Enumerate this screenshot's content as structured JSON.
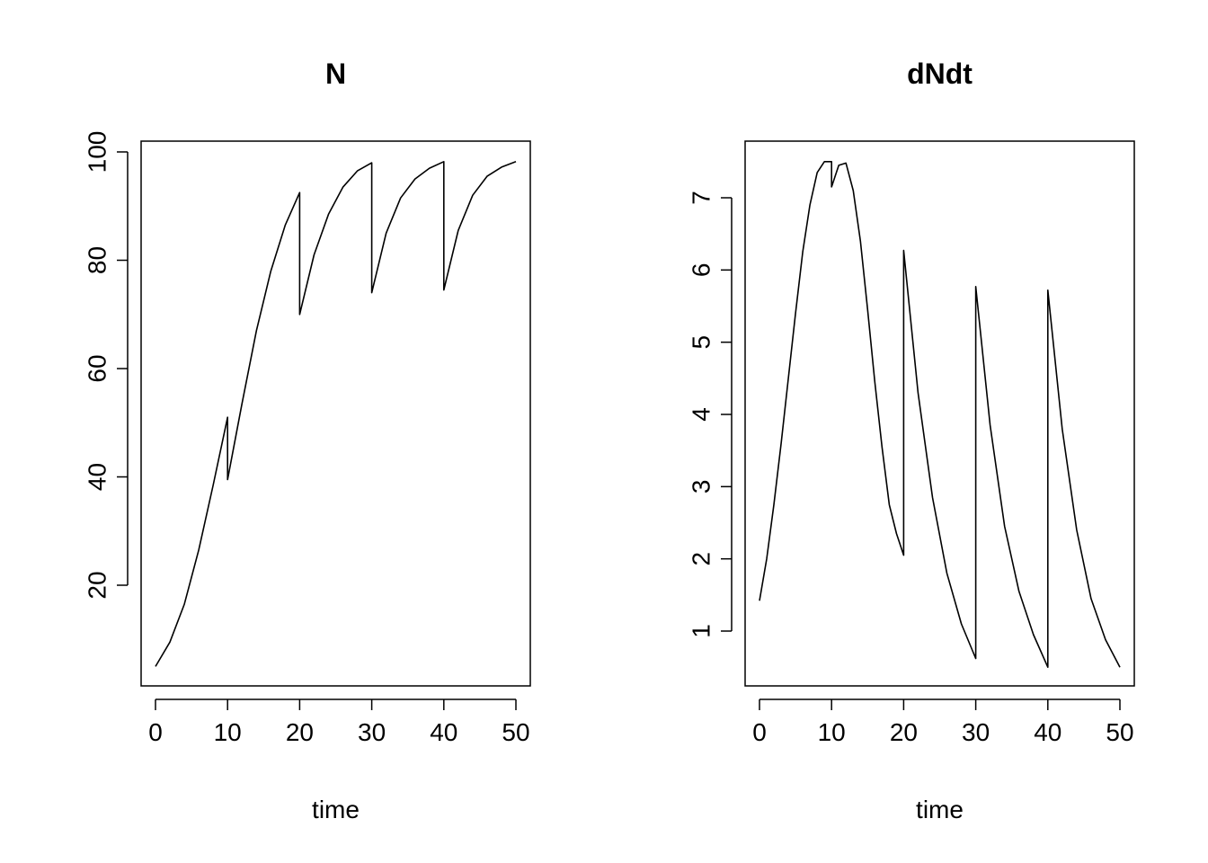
{
  "chart_data": [
    {
      "type": "line",
      "title": "N",
      "xlabel": "time",
      "ylabel": "",
      "xlim": [
        0,
        50
      ],
      "ylim": [
        5,
        100
      ],
      "xticks": [
        0,
        10,
        20,
        30,
        40,
        50
      ],
      "yticks": [
        20,
        40,
        60,
        80,
        100
      ],
      "grid": false,
      "series": [
        {
          "x": [
            0,
            2,
            4,
            6,
            8,
            10,
            10,
            12,
            14,
            16,
            18,
            20,
            20,
            22,
            24,
            26,
            28,
            30,
            30,
            32,
            34,
            36,
            38,
            40,
            40,
            42,
            44,
            46,
            48,
            50
          ],
          "values": [
            5,
            9.5,
            16.5,
            26.5,
            38.5,
            51,
            39.5,
            53.5,
            67,
            78,
            86.5,
            92.5,
            70,
            81,
            88.5,
            93.5,
            96.5,
            98,
            74,
            85,
            91.5,
            95,
            97,
            98.2,
            74.5,
            85.5,
            92,
            95.5,
            97.2,
            98.2
          ]
        }
      ]
    },
    {
      "type": "line",
      "title": "dNdt",
      "xlabel": "time",
      "ylabel": "",
      "xlim": [
        0,
        50
      ],
      "ylim": [
        0.5,
        7.5
      ],
      "xticks": [
        0,
        10,
        20,
        30,
        40,
        50
      ],
      "yticks": [
        1,
        2,
        3,
        4,
        5,
        6,
        7
      ],
      "grid": false,
      "series": [
        {
          "x": [
            0,
            1,
            2,
            3,
            4,
            5,
            6,
            7,
            8,
            9,
            10,
            10,
            11,
            12,
            13,
            14,
            15,
            16,
            17,
            18,
            19,
            20,
            20,
            22,
            24,
            26,
            28,
            30,
            30,
            32,
            34,
            36,
            38,
            40,
            40,
            42,
            44,
            46,
            48,
            50
          ],
          "values": [
            1.42,
            2.0,
            2.75,
            3.6,
            4.5,
            5.4,
            6.25,
            6.9,
            7.35,
            7.5,
            7.5,
            7.15,
            7.45,
            7.48,
            7.1,
            6.4,
            5.45,
            4.45,
            3.55,
            2.75,
            2.35,
            2.05,
            6.27,
            4.3,
            2.85,
            1.8,
            1.1,
            0.62,
            5.77,
            3.85,
            2.45,
            1.55,
            0.95,
            0.5,
            5.72,
            3.8,
            2.4,
            1.45,
            0.88,
            0.5
          ]
        }
      ]
    }
  ]
}
